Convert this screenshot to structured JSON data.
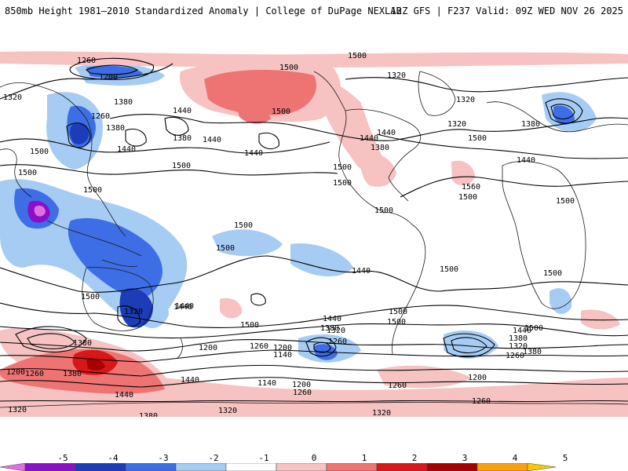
{
  "header": {
    "title": "850mb Height 1981–2010 Standardized Anomaly | College of DuPage NEXLAB",
    "run": "12Z GFS | F237 Valid: 09Z WED NOV 26 2025"
  },
  "colorbar": {
    "ticks": [
      "-5",
      "-4",
      "-3",
      "-2",
      "-1",
      "0",
      "1",
      "2",
      "3",
      "4",
      "5"
    ],
    "colors": [
      "#e070e0",
      "#8a10c8",
      "#1c3cb8",
      "#3e6ee6",
      "#a6ccf4",
      "#ffffff",
      "#f6c2c2",
      "#ee7474",
      "#d81818",
      "#a60000",
      "#f8a010",
      "#f8c800"
    ]
  },
  "contours": {
    "labels": [
      "1260",
      "1200",
      "1320",
      "1380",
      "1260",
      "1380",
      "1440",
      "1500",
      "1440",
      "1380",
      "1500",
      "1440",
      "1500",
      "1440",
      "1500",
      "1500",
      "1500",
      "1320",
      "1500",
      "1380",
      "1320",
      "1440",
      "1500",
      "1440",
      "1380",
      "1320",
      "1500",
      "1440",
      "1560",
      "1320",
      "1380",
      "1500",
      "1500",
      "1500",
      "1500",
      "1500",
      "1500",
      "1500",
      "1440",
      "1500",
      "1500",
      "1440",
      "1440",
      "1380",
      "1320",
      "1260",
      "1200",
      "1260",
      "1140",
      "1200",
      "1140",
      "1200",
      "1260",
      "1260",
      "1200",
      "1260",
      "1320",
      "1320",
      "1380",
      "1440",
      "1500",
      "1440",
      "1380",
      "1320",
      "1260",
      "1200",
      "1260",
      "1380",
      "1440",
      "1380",
      "1500",
      "1500",
      "1320",
      "1440",
      "1500"
    ]
  }
}
